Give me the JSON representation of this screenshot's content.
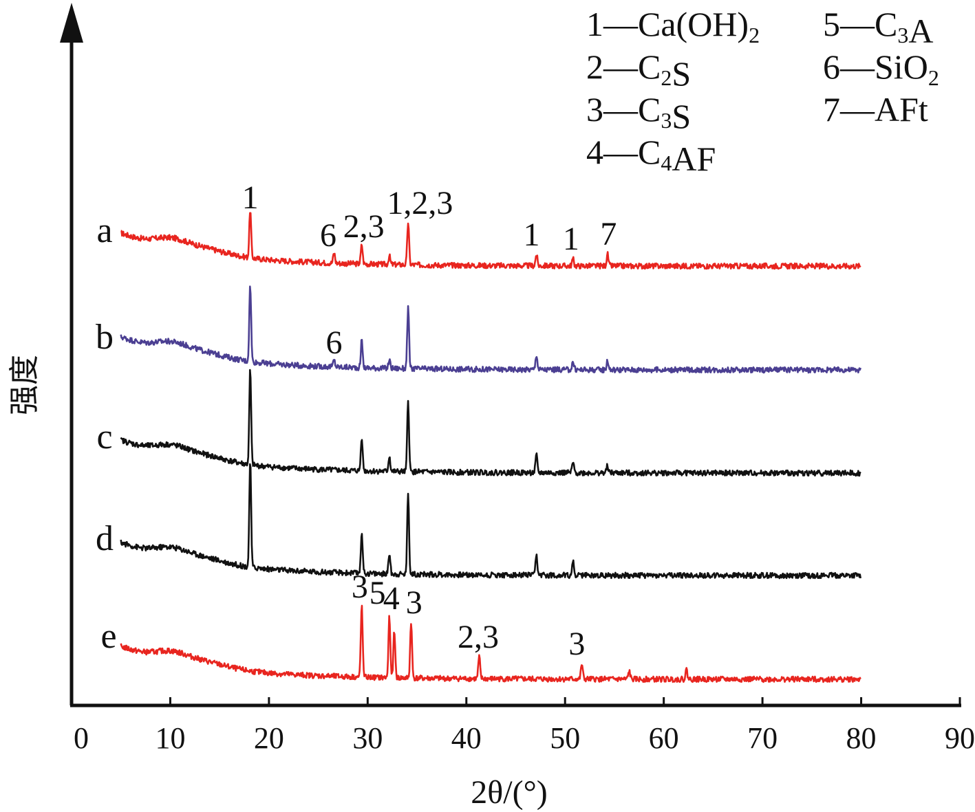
{
  "chart_data": {
    "type": "line",
    "xlabel": "2θ/(°)",
    "ylabel": "强度",
    "xlim": [
      0,
      90
    ],
    "xticks": [
      "0",
      "10",
      "20",
      "30",
      "40",
      "50",
      "60",
      "70",
      "80",
      "90"
    ],
    "grid": false,
    "legend_position": "top-right",
    "legend": [
      {
        "key": "1",
        "phase": "Ca(OH)2"
      },
      {
        "key": "2",
        "phase": "C2S"
      },
      {
        "key": "3",
        "phase": "C3S"
      },
      {
        "key": "4",
        "phase": "C4AF"
      },
      {
        "key": "5",
        "phase": "C3A"
      },
      {
        "key": "6",
        "phase": "SiO2"
      },
      {
        "key": "7",
        "phase": "AFt"
      }
    ],
    "x_range": [
      5,
      80
    ],
    "series": [
      {
        "name": "a",
        "color": "#e8251f",
        "peaks": [
          {
            "x": 18.1,
            "h": 70
          },
          {
            "x": 26.6,
            "h": 15
          },
          {
            "x": 29.4,
            "h": 28
          },
          {
            "x": 32.2,
            "h": 12
          },
          {
            "x": 34.1,
            "h": 62
          },
          {
            "x": 47.1,
            "h": 16
          },
          {
            "x": 50.8,
            "h": 10
          },
          {
            "x": 54.3,
            "h": 17
          }
        ],
        "annotations": [
          {
            "x": 18.1,
            "text": "1"
          },
          {
            "x": 26.0,
            "text": "6"
          },
          {
            "x": 29.6,
            "text": "2,3"
          },
          {
            "x": 35.3,
            "text": "1,2,3"
          },
          {
            "x": 46.6,
            "text": "1"
          },
          {
            "x": 50.6,
            "text": "1"
          },
          {
            "x": 54.4,
            "text": "7"
          }
        ]
      },
      {
        "name": "b",
        "color": "#4b3f92",
        "peaks": [
          {
            "x": 18.1,
            "h": 112
          },
          {
            "x": 26.6,
            "h": 10
          },
          {
            "x": 29.4,
            "h": 40
          },
          {
            "x": 32.2,
            "h": 12
          },
          {
            "x": 34.1,
            "h": 88
          },
          {
            "x": 47.1,
            "h": 22
          },
          {
            "x": 50.8,
            "h": 12
          },
          {
            "x": 54.3,
            "h": 14
          }
        ],
        "annotations": [
          {
            "x": 26.6,
            "text": "6"
          }
        ]
      },
      {
        "name": "c",
        "color": "#111111",
        "peaks": [
          {
            "x": 18.1,
            "h": 138
          },
          {
            "x": 29.4,
            "h": 50
          },
          {
            "x": 32.2,
            "h": 22
          },
          {
            "x": 34.1,
            "h": 103
          },
          {
            "x": 47.1,
            "h": 25
          },
          {
            "x": 50.8,
            "h": 15
          },
          {
            "x": 54.3,
            "h": 10
          }
        ],
        "annotations": []
      },
      {
        "name": "d",
        "color": "#111111",
        "peaks": [
          {
            "x": 18.1,
            "h": 155
          },
          {
            "x": 29.4,
            "h": 60
          },
          {
            "x": 32.2,
            "h": 30
          },
          {
            "x": 34.1,
            "h": 120
          },
          {
            "x": 47.1,
            "h": 28
          },
          {
            "x": 50.8,
            "h": 20
          }
        ],
        "annotations": []
      },
      {
        "name": "e",
        "color": "#e8251f",
        "peaks": [
          {
            "x": 29.4,
            "h": 105
          },
          {
            "x": 32.2,
            "h": 88
          },
          {
            "x": 32.7,
            "h": 68
          },
          {
            "x": 34.4,
            "h": 82
          },
          {
            "x": 41.3,
            "h": 32
          },
          {
            "x": 51.7,
            "h": 22
          },
          {
            "x": 56.5,
            "h": 12
          },
          {
            "x": 62.3,
            "h": 14
          }
        ],
        "annotations": [
          {
            "x": 29.2,
            "text": "3"
          },
          {
            "x": 31.0,
            "text": "5"
          },
          {
            "x": 32.4,
            "text": "4"
          },
          {
            "x": 34.7,
            "text": "3"
          },
          {
            "x": 41.2,
            "text": "2,3"
          },
          {
            "x": 51.2,
            "text": "3"
          }
        ]
      }
    ]
  }
}
